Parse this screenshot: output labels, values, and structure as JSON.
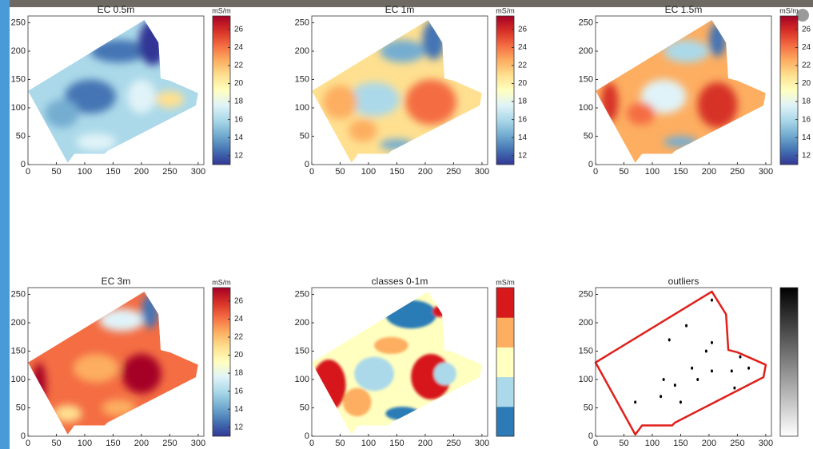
{
  "chart_data": [
    {
      "type": "map",
      "title": "EC 0.5m",
      "xlim": [
        0,
        310
      ],
      "ylim": [
        0,
        262
      ],
      "xticks": [
        0,
        50,
        100,
        150,
        200,
        250,
        300
      ],
      "yticks": [
        0,
        50,
        100,
        150,
        200,
        250
      ],
      "colorbar": {
        "label": "mS/m",
        "lim": [
          11,
          27.5
        ],
        "ticks": [
          12,
          14,
          16,
          18,
          20,
          22,
          24,
          26
        ],
        "colors": [
          "#313695",
          "#4575b4",
          "#74add1",
          "#abd9e9",
          "#e0f3f8",
          "#ffffbf",
          "#fee090",
          "#fdae61",
          "#f46d43",
          "#d73027",
          "#a50026"
        ]
      }
    },
    {
      "type": "map",
      "title": "EC 1m",
      "xlim": [
        0,
        310
      ],
      "ylim": [
        0,
        262
      ],
      "xticks": [
        0,
        50,
        100,
        150,
        200,
        250,
        300
      ],
      "yticks": [
        0,
        50,
        100,
        150,
        200,
        250
      ],
      "colorbar": {
        "label": "mS/m",
        "lim": [
          11,
          27.5
        ],
        "ticks": [
          12,
          14,
          16,
          18,
          20,
          22,
          24,
          26
        ],
        "colors": [
          "#313695",
          "#4575b4",
          "#74add1",
          "#abd9e9",
          "#e0f3f8",
          "#ffffbf",
          "#fee090",
          "#fdae61",
          "#f46d43",
          "#d73027",
          "#a50026"
        ]
      }
    },
    {
      "type": "map",
      "title": "EC 1.5m",
      "xlim": [
        0,
        310
      ],
      "ylim": [
        0,
        262
      ],
      "xticks": [
        0,
        50,
        100,
        150,
        200,
        250,
        300
      ],
      "yticks": [
        0,
        50,
        100,
        150,
        200,
        250
      ],
      "colorbar": {
        "label": "mS/m",
        "lim": [
          11,
          27.5
        ],
        "ticks": [
          12,
          14,
          16,
          18,
          20,
          22,
          24,
          26
        ],
        "colors": [
          "#313695",
          "#4575b4",
          "#74add1",
          "#abd9e9",
          "#e0f3f8",
          "#ffffbf",
          "#fee090",
          "#fdae61",
          "#f46d43",
          "#d73027",
          "#a50026"
        ]
      }
    },
    {
      "type": "map",
      "title": "EC 3m",
      "xlim": [
        0,
        310
      ],
      "ylim": [
        0,
        262
      ],
      "xticks": [
        0,
        50,
        100,
        150,
        200,
        250,
        300
      ],
      "yticks": [
        0,
        50,
        100,
        150,
        200,
        250
      ],
      "colorbar": {
        "label": "mS/m",
        "lim": [
          11,
          27.5
        ],
        "ticks": [
          12,
          14,
          16,
          18,
          20,
          22,
          24,
          26
        ],
        "colors": [
          "#313695",
          "#4575b4",
          "#74add1",
          "#abd9e9",
          "#e0f3f8",
          "#ffffbf",
          "#fee090",
          "#fdae61",
          "#f46d43",
          "#d73027",
          "#a50026"
        ]
      }
    },
    {
      "type": "map",
      "title": "classes 0-1m",
      "xlim": [
        0,
        310
      ],
      "ylim": [
        0,
        262
      ],
      "xticks": [
        0,
        50,
        100,
        150,
        200,
        250,
        300
      ],
      "yticks": [
        0,
        50,
        100,
        150,
        200,
        250
      ],
      "colorbar": {
        "label": "mS/m",
        "colors": [
          "#2c7bb6",
          "#abd9e9",
          "#ffffbf",
          "#fdae61",
          "#d7191c"
        ],
        "discrete": true
      }
    },
    {
      "type": "map",
      "title": "outliers",
      "xlim": [
        0,
        310
      ],
      "ylim": [
        0,
        262
      ],
      "xticks": [
        0,
        50,
        100,
        150,
        200,
        250,
        300
      ],
      "yticks": [
        0,
        50,
        100,
        150,
        200,
        250
      ],
      "colorbar": {
        "colors": [
          "#ffffff",
          "#000000"
        ]
      }
    }
  ]
}
